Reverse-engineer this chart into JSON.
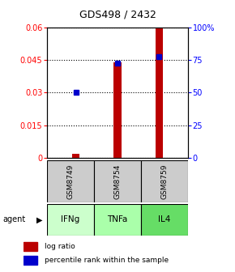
{
  "title": "GDS498 / 2432",
  "samples": [
    "GSM8749",
    "GSM8754",
    "GSM8759"
  ],
  "agents": [
    "IFNg",
    "TNFa",
    "IL4"
  ],
  "log_ratios": [
    0.002,
    0.044,
    0.06
  ],
  "percentile_ranks": [
    0.03,
    0.0435,
    0.0463
  ],
  "ylim_left": [
    0,
    0.06
  ],
  "ylim_right": [
    0,
    100
  ],
  "yticks_left": [
    0,
    0.015,
    0.03,
    0.045,
    0.06
  ],
  "ytick_labels_left": [
    "0",
    "0.015",
    "0.03",
    "0.045",
    "0.06"
  ],
  "yticks_right": [
    0,
    25,
    50,
    75,
    100
  ],
  "ytick_labels_right": [
    "0",
    "25",
    "50",
    "75",
    "100%"
  ],
  "bar_color": "#bb0000",
  "square_color": "#0000cc",
  "sample_bg_color": "#cccccc",
  "agent_colors": [
    "#ccffcc",
    "#aaffaa",
    "#66dd66"
  ],
  "legend_log_ratio": "log ratio",
  "legend_percentile": "percentile rank within the sample",
  "bar_width": 0.18
}
